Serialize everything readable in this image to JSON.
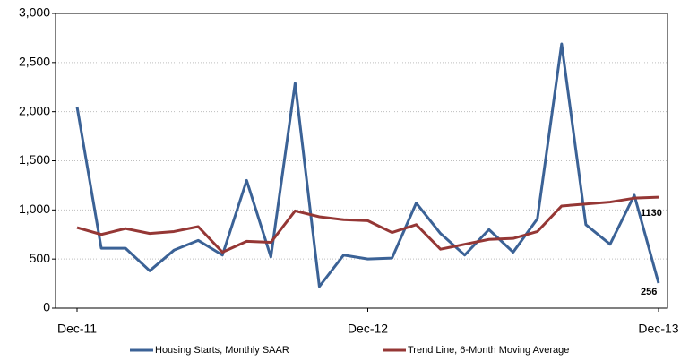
{
  "chart_data": {
    "type": "line",
    "categories": [
      "Dec-11",
      null,
      null,
      null,
      null,
      null,
      null,
      null,
      null,
      null,
      null,
      null,
      "Dec-12",
      null,
      null,
      null,
      null,
      null,
      null,
      null,
      null,
      null,
      null,
      null,
      "Dec-13"
    ],
    "series": [
      {
        "name": "Housing Starts, Monthly SAAR",
        "color": "#3b6296",
        "values": [
          2050,
          610,
          610,
          380,
          590,
          690,
          540,
          1300,
          520,
          2290,
          220,
          540,
          500,
          510,
          1070,
          760,
          540,
          800,
          570,
          910,
          2690,
          850,
          650,
          1150,
          256
        ]
      },
      {
        "name": "Trend Line, 6-Month Moving Average",
        "color": "#953735",
        "values": [
          820,
          750,
          810,
          760,
          780,
          830,
          570,
          680,
          670,
          990,
          930,
          900,
          890,
          770,
          850,
          600,
          650,
          700,
          710,
          780,
          1040,
          1060,
          1080,
          1120,
          1130
        ]
      }
    ],
    "ylim": [
      0,
      3000
    ],
    "yticks": [
      0,
      {
        "value": 500,
        "label": "500"
      },
      {
        "value": 1000,
        "label": "1,000"
      },
      {
        "value": 1500,
        "label": "1,500"
      },
      {
        "value": 2000,
        "label": "2,000"
      },
      {
        "value": 2500,
        "label": "2,500"
      },
      {
        "value": 3000,
        "label": "3,000"
      }
    ],
    "grid": true,
    "legend": "bottom"
  }
}
